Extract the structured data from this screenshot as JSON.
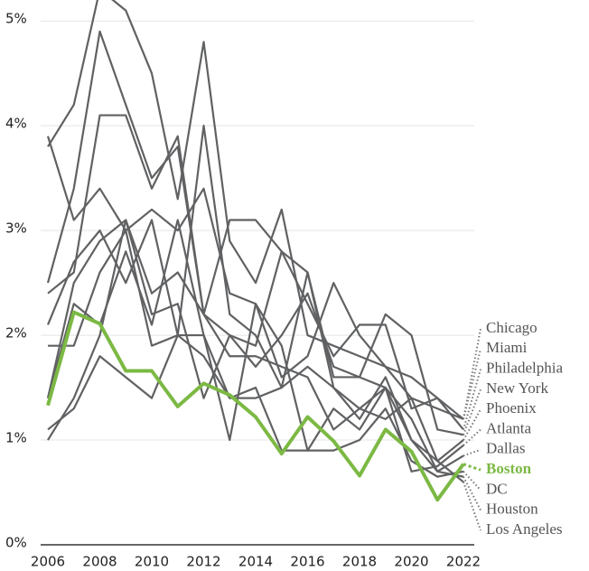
{
  "chart_data": {
    "type": "line",
    "x": [
      2006,
      2007,
      2008,
      2009,
      2010,
      2011,
      2012,
      2013,
      2014,
      2015,
      2016,
      2017,
      2018,
      2019,
      2020,
      2021,
      2022
    ],
    "xlim": [
      2006,
      2022
    ],
    "xticks": [
      2006,
      2008,
      2010,
      2012,
      2014,
      2016,
      2018,
      2020,
      2022
    ],
    "ylim": [
      0,
      5.2
    ],
    "yticks": [
      {
        "value": 0,
        "label": "0%"
      },
      {
        "value": 1,
        "label": "1%"
      },
      {
        "value": 2,
        "label": "2%"
      },
      {
        "value": 3,
        "label": "3%"
      },
      {
        "value": 4,
        "label": "4%"
      },
      {
        "value": 5,
        "label": "5%"
      }
    ],
    "grid": true,
    "highlight": "Boston",
    "series": [
      {
        "name": "Chicago",
        "color": "#606163",
        "values": [
          3.8,
          4.2,
          5.3,
          5.1,
          4.5,
          3.3,
          4.8,
          2.9,
          2.5,
          3.2,
          2.0,
          1.9,
          1.8,
          1.7,
          1.4,
          1.3,
          1.2
        ]
      },
      {
        "name": "Miami",
        "color": "#606163",
        "values": [
          2.5,
          3.4,
          4.9,
          4.2,
          3.5,
          3.8,
          2.2,
          3.1,
          3.1,
          2.8,
          2.3,
          1.8,
          2.1,
          2.1,
          1.3,
          1.4,
          1.2
        ]
      },
      {
        "name": "Philadelphia",
        "color": "#606163",
        "values": [
          3.9,
          3.1,
          3.4,
          3.0,
          3.2,
          3.0,
          3.4,
          2.4,
          2.3,
          1.6,
          1.8,
          2.5,
          2.0,
          1.7,
          1.6,
          1.4,
          1.1
        ]
      },
      {
        "name": "New York",
        "color": "#606163",
        "values": [
          2.4,
          2.6,
          4.1,
          4.1,
          3.4,
          3.9,
          2.2,
          2.0,
          1.7,
          2.0,
          2.4,
          1.7,
          1.6,
          2.2,
          2.0,
          1.1,
          1.05
        ]
      },
      {
        "name": "Phoenix",
        "color": "#606163",
        "values": [
          1.9,
          1.9,
          2.6,
          3.0,
          1.9,
          2.0,
          4.0,
          2.2,
          2.0,
          1.5,
          1.7,
          1.5,
          1.3,
          1.2,
          1.4,
          0.8,
          1.0
        ]
      },
      {
        "name": "Atlanta",
        "color": "#606163",
        "values": [
          2.1,
          2.7,
          3.0,
          2.5,
          3.1,
          2.0,
          2.0,
          1.4,
          1.4,
          1.5,
          2.6,
          1.6,
          1.6,
          1.5,
          0.7,
          0.75,
          0.95
        ]
      },
      {
        "name": "Dallas",
        "color": "#606163",
        "values": [
          1.4,
          2.3,
          2.1,
          2.8,
          2.1,
          3.1,
          2.0,
          1.0,
          2.3,
          1.9,
          0.9,
          1.3,
          1.1,
          1.5,
          1.2,
          0.7,
          0.85
        ]
      },
      {
        "name": "Boston",
        "color": "#7cb944",
        "values": [
          1.33,
          2.22,
          2.11,
          1.66,
          1.66,
          1.32,
          1.54,
          1.43,
          1.22,
          0.87,
          1.22,
          0.99,
          0.66,
          1.1,
          0.89,
          0.43,
          0.77
        ]
      },
      {
        "name": "DC",
        "color": "#606163",
        "values": [
          1.1,
          1.3,
          1.8,
          1.6,
          1.4,
          2.0,
          1.8,
          1.4,
          1.5,
          0.9,
          0.9,
          0.9,
          1.0,
          1.3,
          0.8,
          0.65,
          0.7
        ]
      },
      {
        "name": "Houston",
        "color": "#606163",
        "values": [
          1.0,
          1.4,
          2.0,
          3.1,
          2.4,
          2.6,
          2.2,
          1.8,
          1.8,
          1.7,
          1.6,
          1.1,
          1.3,
          1.5,
          1.0,
          0.7,
          0.65
        ]
      },
      {
        "name": "Los Angeles",
        "color": "#606163",
        "values": [
          1.4,
          2.5,
          2.9,
          3.1,
          2.2,
          2.3,
          1.4,
          2.0,
          1.9,
          2.8,
          2.6,
          1.5,
          1.2,
          1.6,
          1.0,
          0.8,
          0.6
        ]
      }
    ]
  }
}
